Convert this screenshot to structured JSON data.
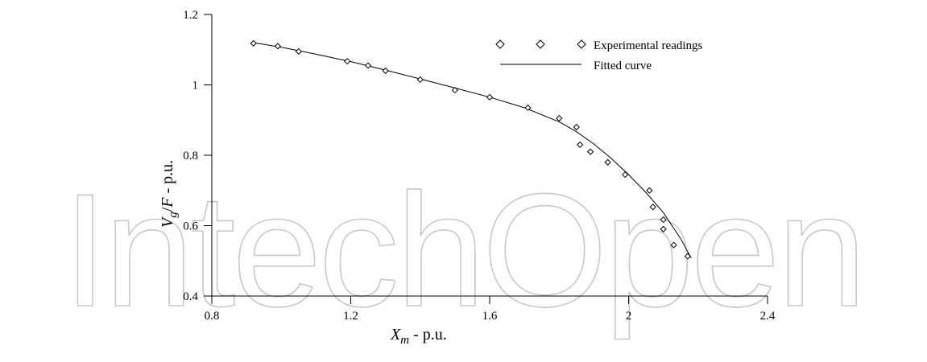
{
  "watermark": "IntechOpen",
  "chart_data": {
    "type": "scatter",
    "title": "",
    "xlabel": {
      "main": "X",
      "sub": "m",
      "suffix": " - p.u."
    },
    "ylabel": {
      "main": "V",
      "sub": "g",
      "mid": "/",
      "main2": "F",
      "suffix": " - p.u."
    },
    "xlim": [
      0.8,
      2.4
    ],
    "ylim": [
      0.4,
      1.2
    ],
    "xticks": [
      0.8,
      1.2,
      1.6,
      2,
      2.4
    ],
    "xtick_labels": [
      "0.8",
      "1.2",
      "1.6",
      "2",
      "2.4"
    ],
    "yticks": [
      0.4,
      0.6,
      0.8,
      1,
      1.2
    ],
    "ytick_labels": [
      "0.4",
      "0.6",
      "0.8",
      "1",
      "1.2"
    ],
    "grid": false,
    "legend_position": "top-right",
    "series": [
      {
        "name": "Experimental readings",
        "marker": "diamond",
        "x": [
          0.92,
          0.99,
          1.05,
          1.19,
          1.25,
          1.3,
          1.4,
          1.5,
          1.6,
          1.71,
          1.8,
          1.85,
          1.86,
          1.89,
          1.94,
          1.99,
          2.06,
          2.07,
          2.1,
          2.1,
          2.13,
          2.17
        ],
        "y": [
          1.118,
          1.11,
          1.095,
          1.067,
          1.055,
          1.04,
          1.015,
          0.985,
          0.965,
          0.935,
          0.905,
          0.88,
          0.83,
          0.81,
          0.78,
          0.745,
          0.7,
          0.653,
          0.617,
          0.59,
          0.545,
          0.513
        ]
      },
      {
        "name": "Fitted curve",
        "style": "line",
        "x": [
          0.92,
          1.0,
          1.1,
          1.2,
          1.3,
          1.4,
          1.5,
          1.6,
          1.7,
          1.8,
          1.85,
          1.9,
          1.95,
          2.0,
          2.05,
          2.1,
          2.15,
          2.18
        ],
        "y": [
          1.12,
          1.107,
          1.087,
          1.066,
          1.042,
          1.017,
          0.991,
          0.965,
          0.935,
          0.895,
          0.867,
          0.832,
          0.791,
          0.745,
          0.694,
          0.637,
          0.563,
          0.508
        ]
      }
    ]
  }
}
